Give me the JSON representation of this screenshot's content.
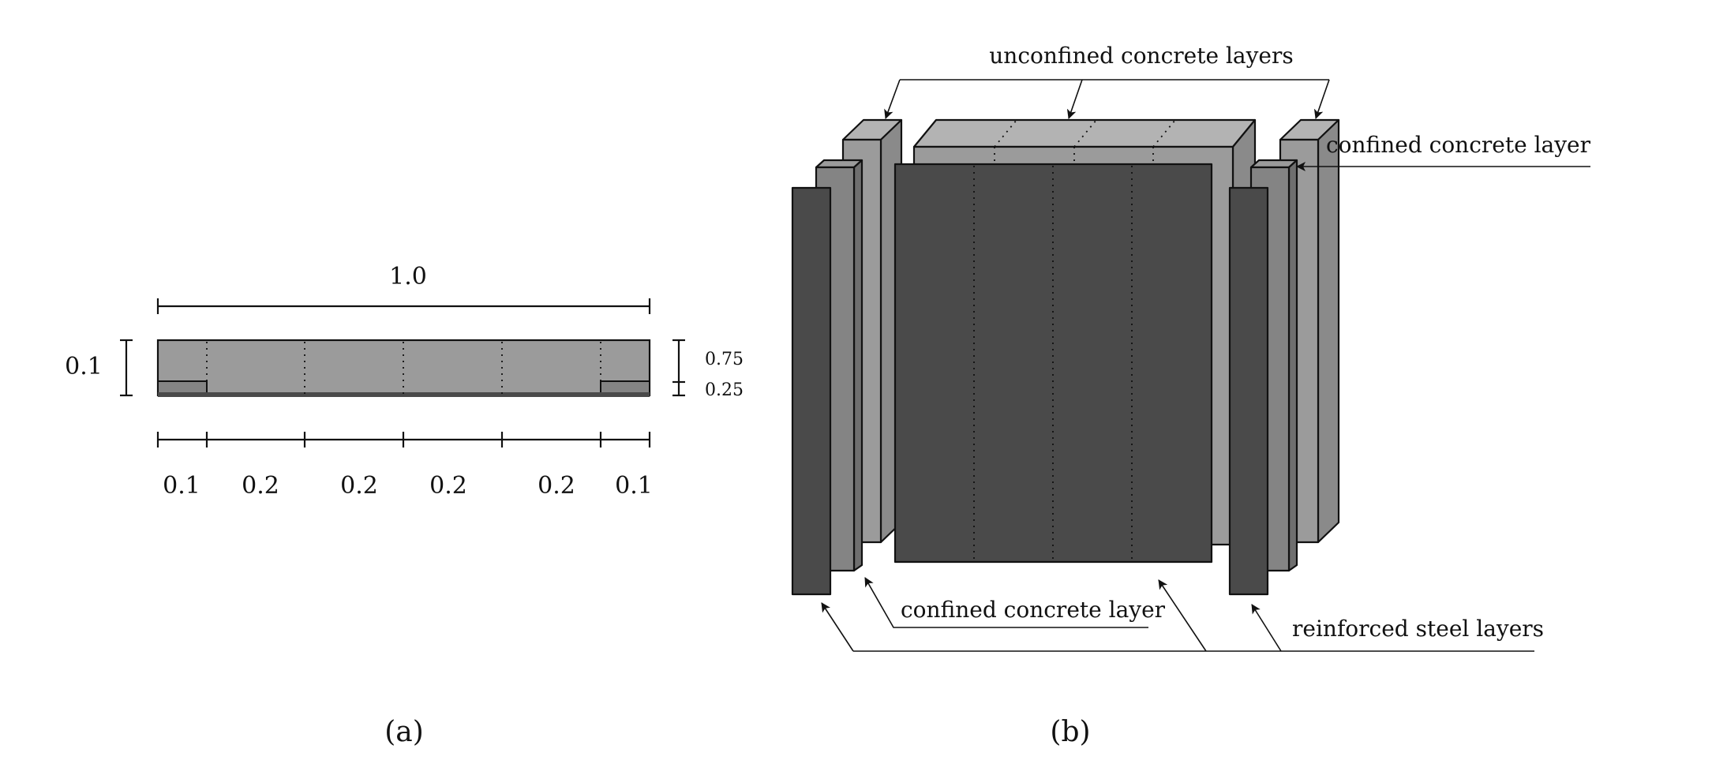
{
  "panel_a": {
    "caption": "(a)",
    "width_label": "1.0",
    "height_label": "0.1",
    "upper_fraction_label": "0.75",
    "lower_fraction_label": "0.25",
    "segment_labels": [
      "0.1",
      "0.2",
      "0.2",
      "0.2",
      "0.2",
      "0.1"
    ]
  },
  "panel_b": {
    "caption": "(b)",
    "label_unconfined": "unconfined concrete layers",
    "label_confined_top": "confined concrete layer",
    "label_confined_bottom": "confined concrete layer",
    "label_steel": "reinforced steel layers"
  },
  "colors": {
    "concrete_light": "#9b9b9b",
    "concrete_mid": "#848484",
    "steel_dark": "#4a4a4a",
    "edge": "#111111"
  }
}
